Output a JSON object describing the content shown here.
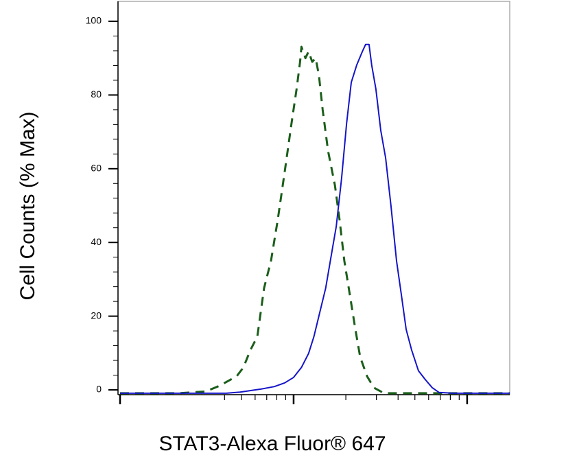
{
  "chart_data": {
    "type": "line",
    "xlabel": "STAT3-Alexa Fluor® 647",
    "ylabel": "Cell Counts (% Max)",
    "xscale": "log",
    "xlim": [
      0.973,
      176
    ],
    "xticks": [
      1,
      10,
      100
    ],
    "xminorticks": [
      4,
      5,
      6,
      7,
      8,
      9,
      20,
      30,
      40,
      50,
      60,
      70,
      80,
      90
    ],
    "ylim": [
      -1.3,
      105.4
    ],
    "yticks": [
      0,
      20,
      40,
      60,
      80,
      100
    ],
    "yminorticks": [
      4,
      8,
      12,
      16,
      24,
      28,
      32,
      36,
      44,
      48,
      52,
      56,
      64,
      68,
      72,
      76,
      84,
      88,
      92,
      96
    ],
    "series": [
      {
        "color": "#1a5e1a",
        "dashed": true,
        "x": [
          1,
          2.17,
          3.12,
          3.74,
          4.7,
          5.14,
          5.64,
          6.18,
          6.76,
          7.41,
          8.11,
          8.89,
          9.73,
          10.4,
          10.9,
          11.1,
          11.7,
          12.2,
          12.8,
          13.4,
          14.0,
          14.7,
          15.8,
          17.3,
          18.4,
          19.6,
          21.1,
          22.7,
          24.2,
          26.5,
          29.0,
          33.2,
          47.9,
          176
        ],
        "values": [
          -0.9,
          -0.9,
          -0.4,
          1.1,
          3.7,
          6.1,
          10.8,
          14.5,
          27.6,
          35.0,
          46.2,
          59.2,
          72.3,
          81.6,
          89.0,
          93.1,
          90.0,
          91.8,
          89.0,
          90.0,
          85.3,
          76.0,
          64.8,
          55.5,
          46.2,
          35.0,
          25.7,
          16.4,
          8.9,
          3.7,
          0.6,
          -0.9,
          -0.9,
          -0.9
        ]
      },
      {
        "color": "#1414c8",
        "dashed": false,
        "x": [
          1,
          4.1,
          4.92,
          6.46,
          7.75,
          8.89,
          10.0,
          11.1,
          12.2,
          13.1,
          14.0,
          15.3,
          16.8,
          17.6,
          18.9,
          20.2,
          21.5,
          23.1,
          24.9,
          26.0,
          27.2,
          28.2,
          29.8,
          31.8,
          33.9,
          36.4,
          39.2,
          41.8,
          44.5,
          47.9,
          52.4,
          57.4,
          62.9,
          68.9,
          82.6,
          176
        ],
        "values": [
          -0.9,
          -0.9,
          -0.6,
          0.2,
          0.9,
          1.9,
          3.4,
          6.1,
          9.9,
          14.5,
          20.1,
          27.6,
          38.7,
          44.3,
          57.4,
          72.3,
          83.4,
          88.1,
          91.8,
          93.7,
          93.7,
          88.1,
          81.6,
          70.4,
          62.9,
          49.9,
          35.0,
          25.7,
          16.4,
          10.8,
          5.2,
          2.8,
          0.6,
          -0.7,
          -0.9,
          -0.9
        ]
      }
    ]
  }
}
